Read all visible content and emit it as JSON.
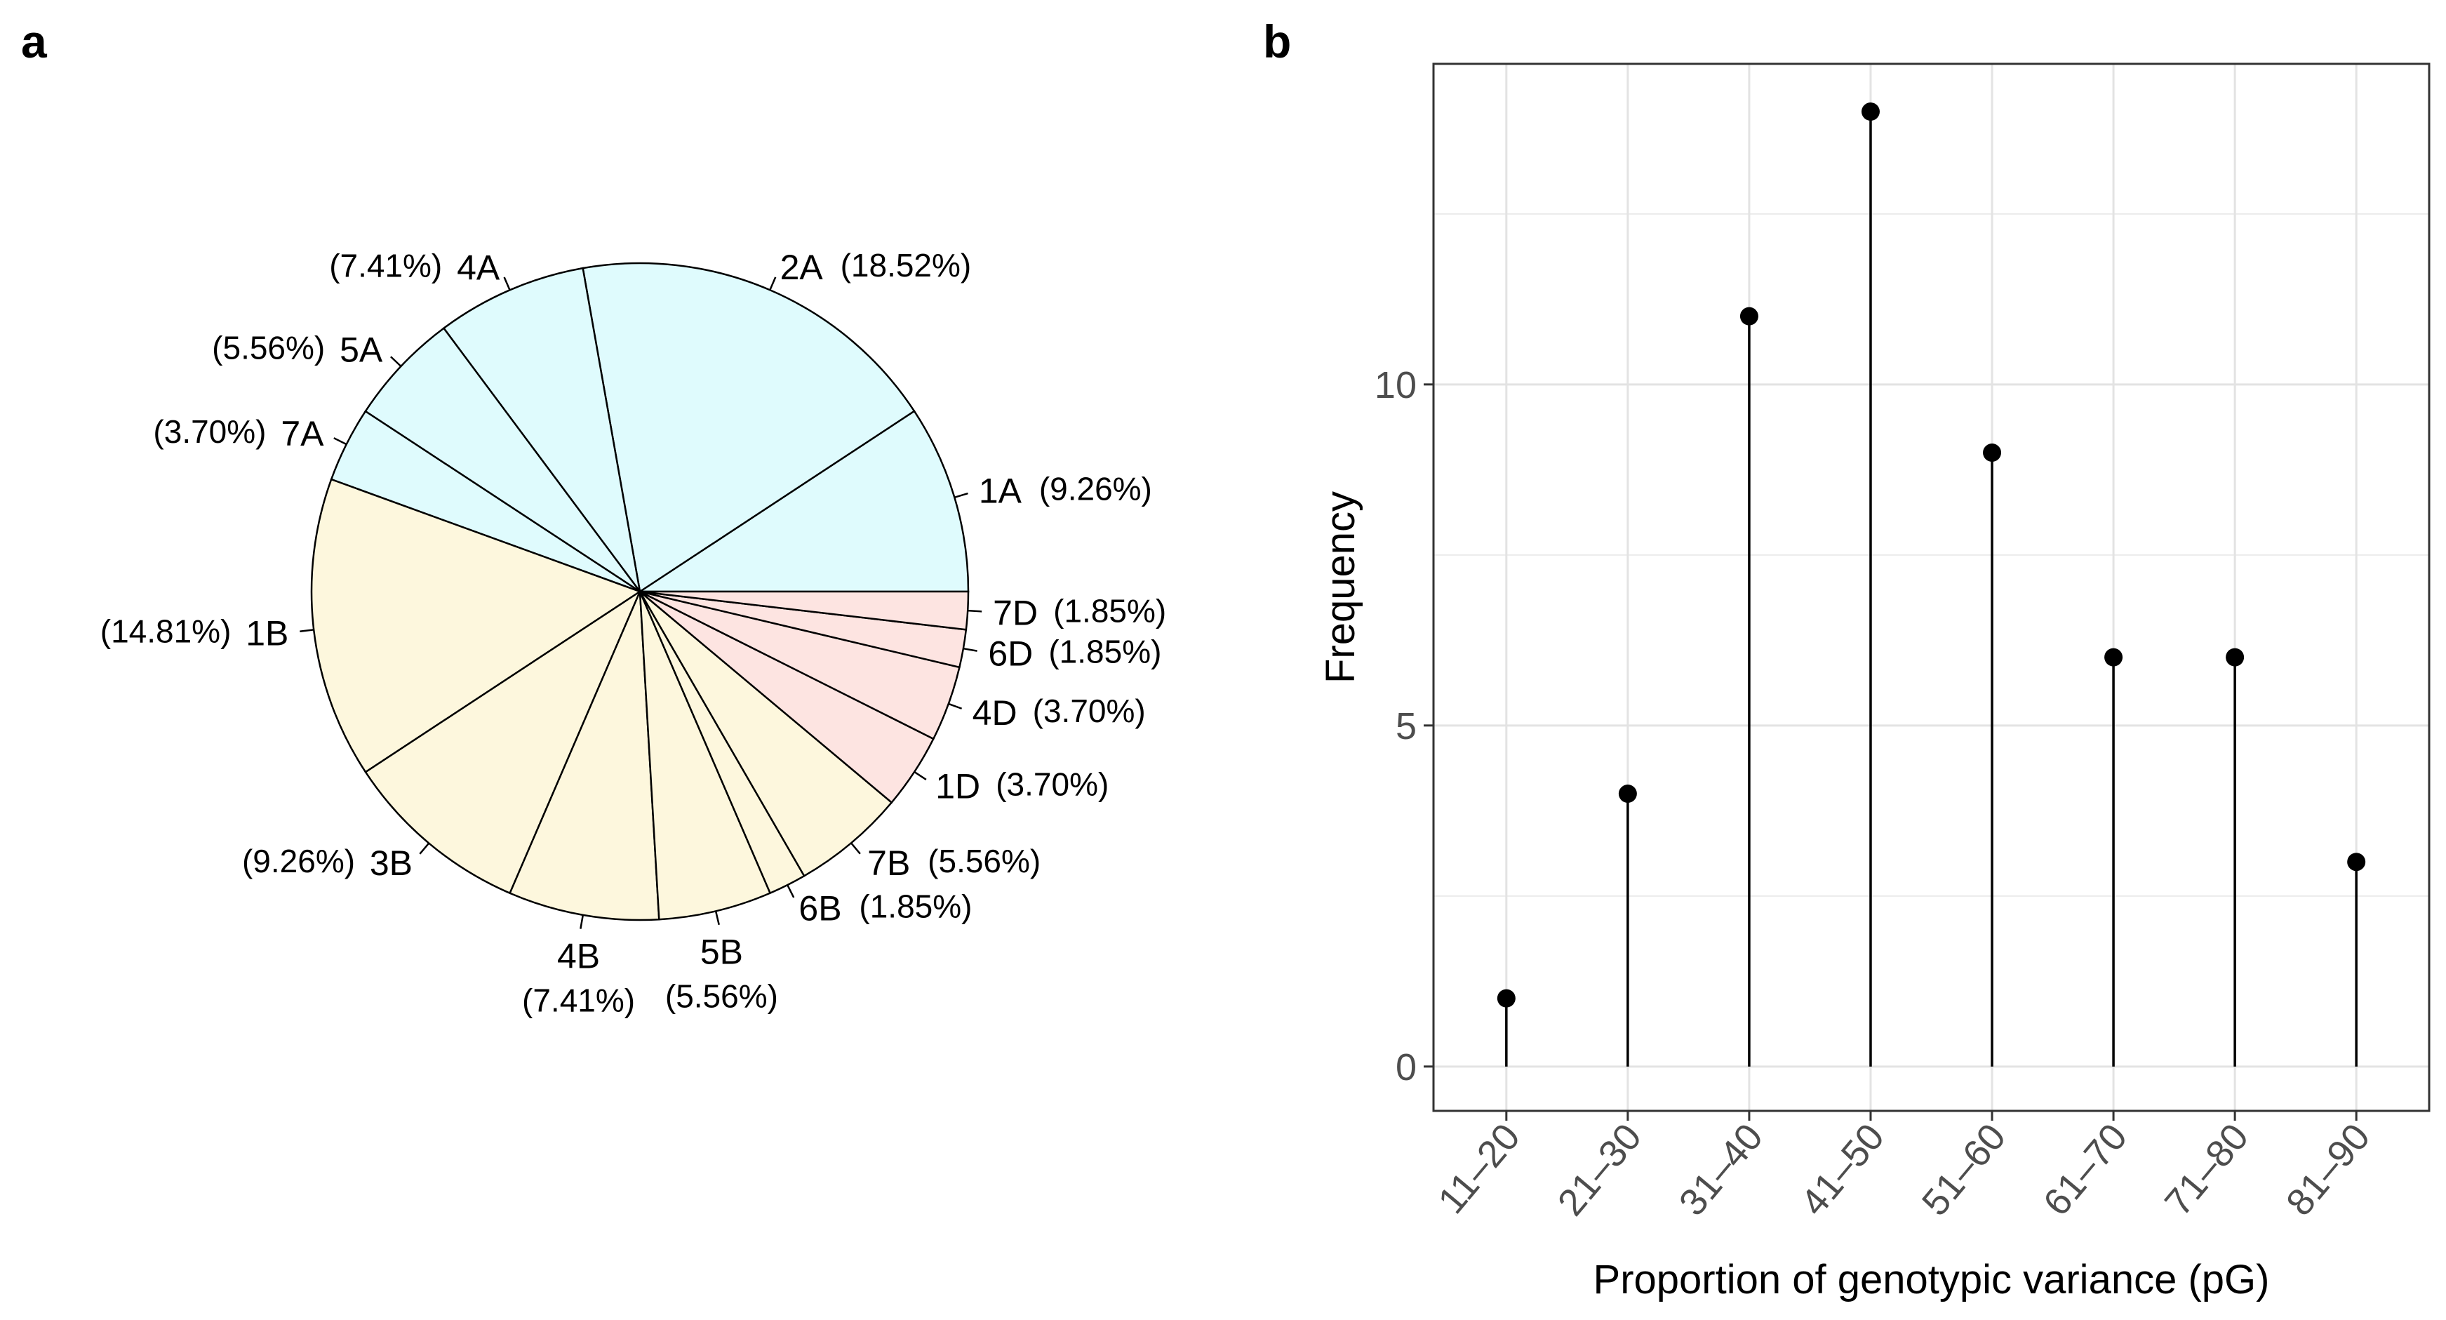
{
  "panels": {
    "a": "a",
    "b": "b"
  },
  "chart_data": [
    {
      "type": "pie",
      "panel": "a",
      "slices": [
        {
          "label": "1A",
          "value": 9.26,
          "pct_label": "(9.26%)",
          "color": "#dffbfd",
          "side": "right"
        },
        {
          "label": "2A",
          "value": 18.52,
          "pct_label": "(18.52%)",
          "color": "#dffbfd",
          "side": "right"
        },
        {
          "label": "4A",
          "value": 7.41,
          "pct_label": "(7.41%)",
          "color": "#dffbfd",
          "side": "left"
        },
        {
          "label": "5A",
          "value": 5.56,
          "pct_label": "(5.56%)",
          "color": "#dffbfd",
          "side": "left"
        },
        {
          "label": "7A",
          "value": 3.7,
          "pct_label": "(3.70%)",
          "color": "#dffbfd",
          "side": "left"
        },
        {
          "label": "1B",
          "value": 14.81,
          "pct_label": "(14.81%)",
          "color": "#fdf7dd",
          "side": "left"
        },
        {
          "label": "3B",
          "value": 9.26,
          "pct_label": "(9.26%)",
          "color": "#fdf7dd",
          "side": "left"
        },
        {
          "label": "4B",
          "value": 7.41,
          "pct_label": "(7.41%)",
          "color": "#fdf7dd",
          "side": "below"
        },
        {
          "label": "5B",
          "value": 5.56,
          "pct_label": "(5.56%)",
          "color": "#fdf7dd",
          "side": "below"
        },
        {
          "label": "6B",
          "value": 1.85,
          "pct_label": "(1.85%)",
          "color": "#fdf7dd",
          "side": "right"
        },
        {
          "label": "7B",
          "value": 5.56,
          "pct_label": "(5.56%)",
          "color": "#fdf7dd",
          "side": "right"
        },
        {
          "label": "1D",
          "value": 3.7,
          "pct_label": "(3.70%)",
          "color": "#fde4e1",
          "side": "right"
        },
        {
          "label": "4D",
          "value": 3.7,
          "pct_label": "(3.70%)",
          "color": "#fde4e1",
          "side": "right"
        },
        {
          "label": "6D",
          "value": 1.85,
          "pct_label": "(1.85%)",
          "color": "#fde4e1",
          "side": "right"
        },
        {
          "label": "7D",
          "value": 1.85,
          "pct_label": "(1.85%)",
          "color": "#fde4e1",
          "side": "right"
        }
      ]
    },
    {
      "type": "lollipop",
      "panel": "b",
      "categories": [
        "11–20",
        "21–30",
        "31–40",
        "41–50",
        "51–60",
        "61–70",
        "71–80",
        "81–90"
      ],
      "values": [
        1,
        4,
        11,
        14,
        9,
        6,
        6,
        3
      ],
      "xlabel": "Proportion of genotypic variance (pG)",
      "ylabel": "Frequency",
      "yticks": [
        0,
        5,
        10
      ],
      "ylim": [
        -0.65,
        14.7
      ],
      "grid": true
    }
  ]
}
